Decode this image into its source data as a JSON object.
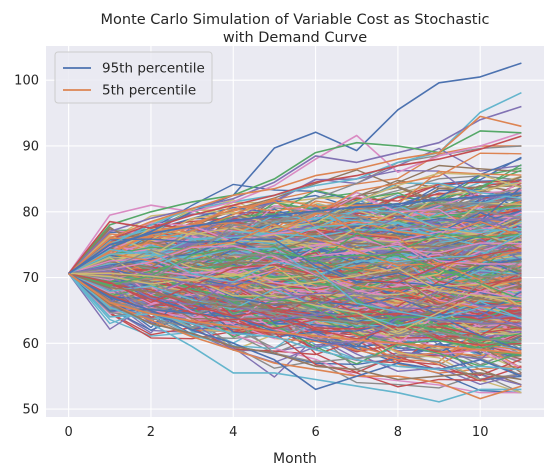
{
  "chart_data": {
    "type": "line",
    "title": "Monte Carlo Simulation of Variable Cost as Stochastic\nwith Demand Curve",
    "xlabel": "Month",
    "ylabel": "",
    "xlim": [
      -0.55,
      11.55
    ],
    "ylim": [
      48.8,
      105.2
    ],
    "xticks": [
      0,
      2,
      4,
      6,
      8,
      10
    ],
    "yticks": [
      50,
      60,
      70,
      80,
      90,
      100
    ],
    "grid": true,
    "legend_position": "top-left",
    "background_color": "#eaeaf2",
    "start_value": 70.6,
    "series": [
      {
        "name": "95th percentile",
        "color": "#4c72b0",
        "x": [
          0,
          1,
          2,
          3,
          4,
          5,
          6,
          7,
          8,
          9,
          10,
          11
        ],
        "values": [
          70.6,
          75.0,
          76.7,
          77.8,
          78.7,
          79.4,
          80.1,
          80.7,
          81.2,
          81.8,
          82.3,
          82.8
        ]
      },
      {
        "name": "5th percentile",
        "color": "#dd8452",
        "x": [
          0,
          1,
          2,
          3,
          4,
          5,
          6,
          7,
          8,
          9,
          10,
          11
        ],
        "values": [
          70.6,
          66.2,
          64.5,
          63.4,
          62.5,
          61.7,
          61.1,
          60.5,
          60.0,
          59.5,
          59.0,
          58.5
        ]
      }
    ],
    "simulated_paths": {
      "count": 1000,
      "months": 11,
      "colors": [
        "#4c72b0",
        "#dd8452",
        "#55a868",
        "#c44e52",
        "#8172b3",
        "#937860",
        "#da8bc3",
        "#8c8c8c",
        "#ccb974",
        "#64b5cd"
      ],
      "notable_paths": [
        {
          "color": "#4c72b0",
          "values": [
            70.6,
            74.5,
            77.0,
            80.0,
            82.5,
            89.7,
            92.1,
            89.3,
            95.5,
            99.6,
            100.5,
            102.6
          ]
        },
        {
          "color": "#64b5cd",
          "values": [
            70.6,
            65.5,
            63.0,
            59.5,
            55.5,
            55.5,
            54.5,
            53.5,
            52.5,
            51.1,
            53.0,
            53.0
          ]
        },
        {
          "color": "#64b5cd",
          "values": [
            70.6,
            75.0,
            78.0,
            80.5,
            81.5,
            82.5,
            84.0,
            85.0,
            87.5,
            89.0,
            95.1,
            98.1
          ]
        },
        {
          "color": "#dd8452",
          "values": [
            70.6,
            66.0,
            63.5,
            61.0,
            59.0,
            57.0,
            56.0,
            55.0,
            55.0,
            54.0,
            51.6,
            53.5
          ]
        },
        {
          "color": "#4c72b0",
          "values": [
            70.6,
            67.0,
            65.0,
            62.0,
            60.0,
            57.5,
            53.0,
            55.0,
            57.0,
            56.0,
            57.5,
            55.0
          ]
        },
        {
          "color": "#da8bc3",
          "values": [
            70.6,
            79.5,
            81.0,
            80.0,
            81.5,
            84.0,
            88.0,
            91.6,
            86.0,
            88.5,
            90.0,
            92.0
          ]
        },
        {
          "color": "#8172b3",
          "values": [
            70.6,
            77.0,
            79.0,
            80.5,
            82.0,
            84.5,
            88.5,
            87.5,
            89.0,
            90.5,
            94.0,
            96.0
          ]
        },
        {
          "color": "#55a868",
          "values": [
            70.6,
            78.0,
            80.0,
            81.5,
            82.5,
            85.0,
            89.0,
            90.5,
            90.0,
            89.0,
            92.3,
            92.0
          ]
        },
        {
          "color": "#dd8452",
          "values": [
            70.6,
            76.0,
            78.5,
            80.5,
            82.5,
            83.5,
            85.5,
            86.5,
            88.0,
            89.0,
            94.5,
            93.0
          ]
        },
        {
          "color": "#c44e52",
          "values": [
            70.6,
            78.5,
            77.5,
            79.5,
            81.0,
            82.5,
            84.5,
            85.5,
            87.0,
            88.0,
            89.5,
            91.5
          ]
        },
        {
          "color": "#64b5cd",
          "values": [
            70.6,
            64.0,
            64.5,
            63.0,
            61.5,
            61.0,
            59.0,
            57.5,
            56.5,
            56.0,
            56.5,
            56.0
          ]
        },
        {
          "color": "#937860",
          "values": [
            70.6,
            66.0,
            63.0,
            61.5,
            59.5,
            58.5,
            56.5,
            56.0,
            54.5,
            55.0,
            55.5,
            54.5
          ]
        }
      ]
    }
  }
}
